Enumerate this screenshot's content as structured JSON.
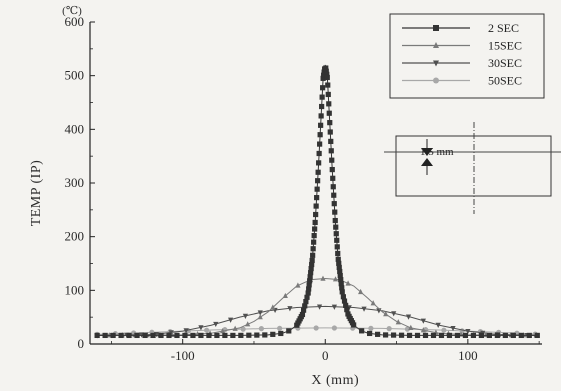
{
  "chart_data": {
    "type": "line",
    "title": "",
    "xlabel": "X (mm)",
    "ylabel": "TEMP (IP)",
    "y_unit": "(℃)",
    "xlim": [
      -165,
      152
    ],
    "ylim": [
      0,
      600
    ],
    "x_ticks": [
      -100,
      0,
      100
    ],
    "y_ticks": [
      0,
      100,
      200,
      300,
      400,
      500,
      600
    ],
    "grid": false,
    "legend_position": "top-right",
    "series": [
      {
        "name": "2 SEC",
        "color": "#333333",
        "marker": "square",
        "x": [
          -160,
          -60,
          -40,
          -30,
          -25,
          -20,
          -16,
          -12,
          -9,
          -7,
          -5,
          -3,
          -1.5,
          0,
          1.5,
          3,
          5,
          7,
          9,
          12,
          16,
          20,
          25,
          30,
          40,
          60,
          150
        ],
        "y": [
          16,
          16,
          17,
          20,
          25,
          35,
          55,
          95,
          160,
          230,
          320,
          420,
          495,
          520,
          495,
          420,
          320,
          230,
          160,
          95,
          55,
          35,
          25,
          20,
          17,
          16,
          16
        ]
      },
      {
        "name": "15SEC",
        "color": "#7a7a7a",
        "marker": "triangle-up",
        "x": [
          -160,
          -100,
          -80,
          -60,
          -50,
          -40,
          -30,
          -20,
          -10,
          0,
          10,
          20,
          30,
          40,
          50,
          60,
          80,
          100,
          150
        ],
        "y": [
          16,
          17,
          20,
          30,
          42,
          60,
          85,
          108,
          120,
          122,
          120,
          108,
          85,
          60,
          42,
          30,
          20,
          17,
          16
        ]
      },
      {
        "name": "30SEC",
        "color": "#505050",
        "marker": "triangle-down",
        "x": [
          -160,
          -120,
          -100,
          -80,
          -60,
          -40,
          -20,
          0,
          20,
          40,
          60,
          80,
          100,
          120,
          150
        ],
        "y": [
          16,
          18,
          24,
          35,
          50,
          62,
          68,
          70,
          68,
          62,
          50,
          35,
          24,
          18,
          16
        ]
      },
      {
        "name": "50SEC",
        "color": "#a8a8a8",
        "marker": "circle",
        "x": [
          -160,
          -120,
          -80,
          -40,
          0,
          40,
          80,
          120,
          150
        ],
        "y": [
          18,
          22,
          26,
          29,
          30,
          29,
          26,
          22,
          18
        ]
      }
    ]
  },
  "inset": {
    "dimension_label": "1.5 mm"
  }
}
